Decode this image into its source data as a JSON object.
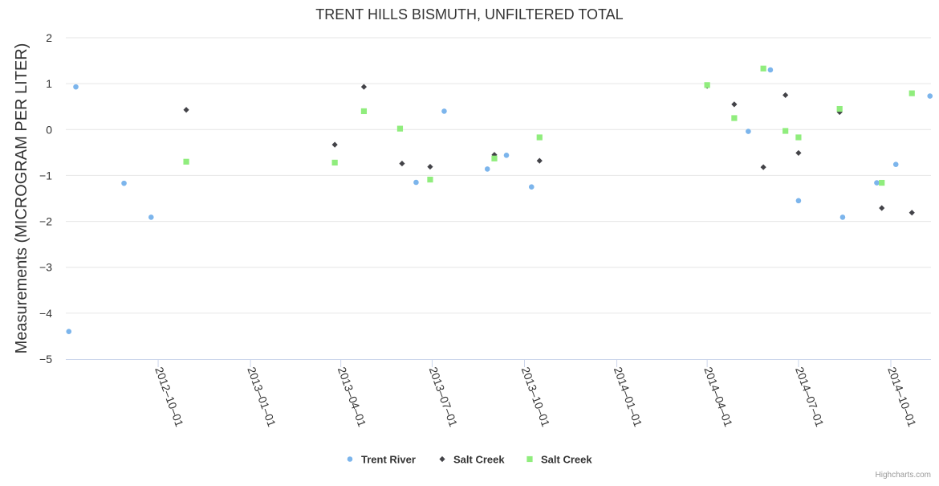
{
  "chart_data": {
    "type": "scatter",
    "title": "TRENT HILLS BISMUTH, UNFILTERED TOTAL",
    "ylabel": "Measurements (MICROGRAM PER LITER)",
    "xlabel": "",
    "ylim": [
      -5,
      2
    ],
    "yticks": [
      2,
      1,
      0,
      -1,
      -2,
      -3,
      -4,
      -5
    ],
    "xlim": [
      "2012-07-01",
      "2014-11-10"
    ],
    "xticks": [
      "2012-10-01",
      "2013-01-01",
      "2013-04-01",
      "2013-07-01",
      "2013-10-01",
      "2014-01-01",
      "2014-04-01",
      "2014-07-01",
      "2014-10-01"
    ],
    "grid": true,
    "legend_position": "bottom-center",
    "series": [
      {
        "name": "Trent River",
        "marker": "circle",
        "color": "#7cb5ec",
        "points": [
          {
            "x": "2012-07-04",
            "y": -4.4
          },
          {
            "x": "2012-07-11",
            "y": 0.93
          },
          {
            "x": "2012-08-28",
            "y": -1.17
          },
          {
            "x": "2012-09-24",
            "y": -1.91
          },
          {
            "x": "2013-06-15",
            "y": -1.15
          },
          {
            "x": "2013-07-13",
            "y": 0.4
          },
          {
            "x": "2013-08-25",
            "y": -0.86
          },
          {
            "x": "2013-09-13",
            "y": -0.56
          },
          {
            "x": "2013-10-08",
            "y": -1.25
          },
          {
            "x": "2014-05-12",
            "y": -0.04
          },
          {
            "x": "2014-06-03",
            "y": 1.3
          },
          {
            "x": "2014-07-01",
            "y": -1.55
          },
          {
            "x": "2014-08-14",
            "y": -1.91
          },
          {
            "x": "2014-09-17",
            "y": -1.16
          },
          {
            "x": "2014-10-06",
            "y": -0.76
          },
          {
            "x": "2014-11-09",
            "y": 0.73
          }
        ]
      },
      {
        "name": "Salt Creek",
        "marker": "diamond",
        "color": "#434348",
        "points": [
          {
            "x": "2012-10-29",
            "y": 0.43
          },
          {
            "x": "2013-03-26",
            "y": -0.33
          },
          {
            "x": "2013-04-24",
            "y": 0.93
          },
          {
            "x": "2013-06-01",
            "y": -0.74
          },
          {
            "x": "2013-06-29",
            "y": -0.81
          },
          {
            "x": "2013-09-01",
            "y": -0.55
          },
          {
            "x": "2013-10-16",
            "y": -0.68
          },
          {
            "x": "2014-04-01",
            "y": 0.95
          },
          {
            "x": "2014-04-28",
            "y": 0.55
          },
          {
            "x": "2014-05-27",
            "y": -0.82
          },
          {
            "x": "2014-06-18",
            "y": 0.75
          },
          {
            "x": "2014-07-01",
            "y": -0.51
          },
          {
            "x": "2014-08-11",
            "y": 0.38
          },
          {
            "x": "2014-09-22",
            "y": -1.71
          },
          {
            "x": "2014-10-22",
            "y": -1.81
          }
        ]
      },
      {
        "name": "Salt Creek",
        "marker": "square",
        "color": "#90ed7d",
        "points": [
          {
            "x": "2012-10-29",
            "y": -0.7
          },
          {
            "x": "2013-03-26",
            "y": -0.72
          },
          {
            "x": "2013-04-24",
            "y": 0.4
          },
          {
            "x": "2013-05-30",
            "y": 0.02
          },
          {
            "x": "2013-06-29",
            "y": -1.09
          },
          {
            "x": "2013-09-01",
            "y": -0.63
          },
          {
            "x": "2013-10-16",
            "y": -0.17
          },
          {
            "x": "2014-04-01",
            "y": 0.97
          },
          {
            "x": "2014-04-28",
            "y": 0.25
          },
          {
            "x": "2014-05-27",
            "y": 1.33
          },
          {
            "x": "2014-06-18",
            "y": -0.03
          },
          {
            "x": "2014-07-01",
            "y": -0.17
          },
          {
            "x": "2014-08-11",
            "y": 0.45
          },
          {
            "x": "2014-09-22",
            "y": -1.16
          },
          {
            "x": "2014-10-22",
            "y": 0.79
          }
        ]
      }
    ]
  },
  "credits": "Highcharts.com"
}
